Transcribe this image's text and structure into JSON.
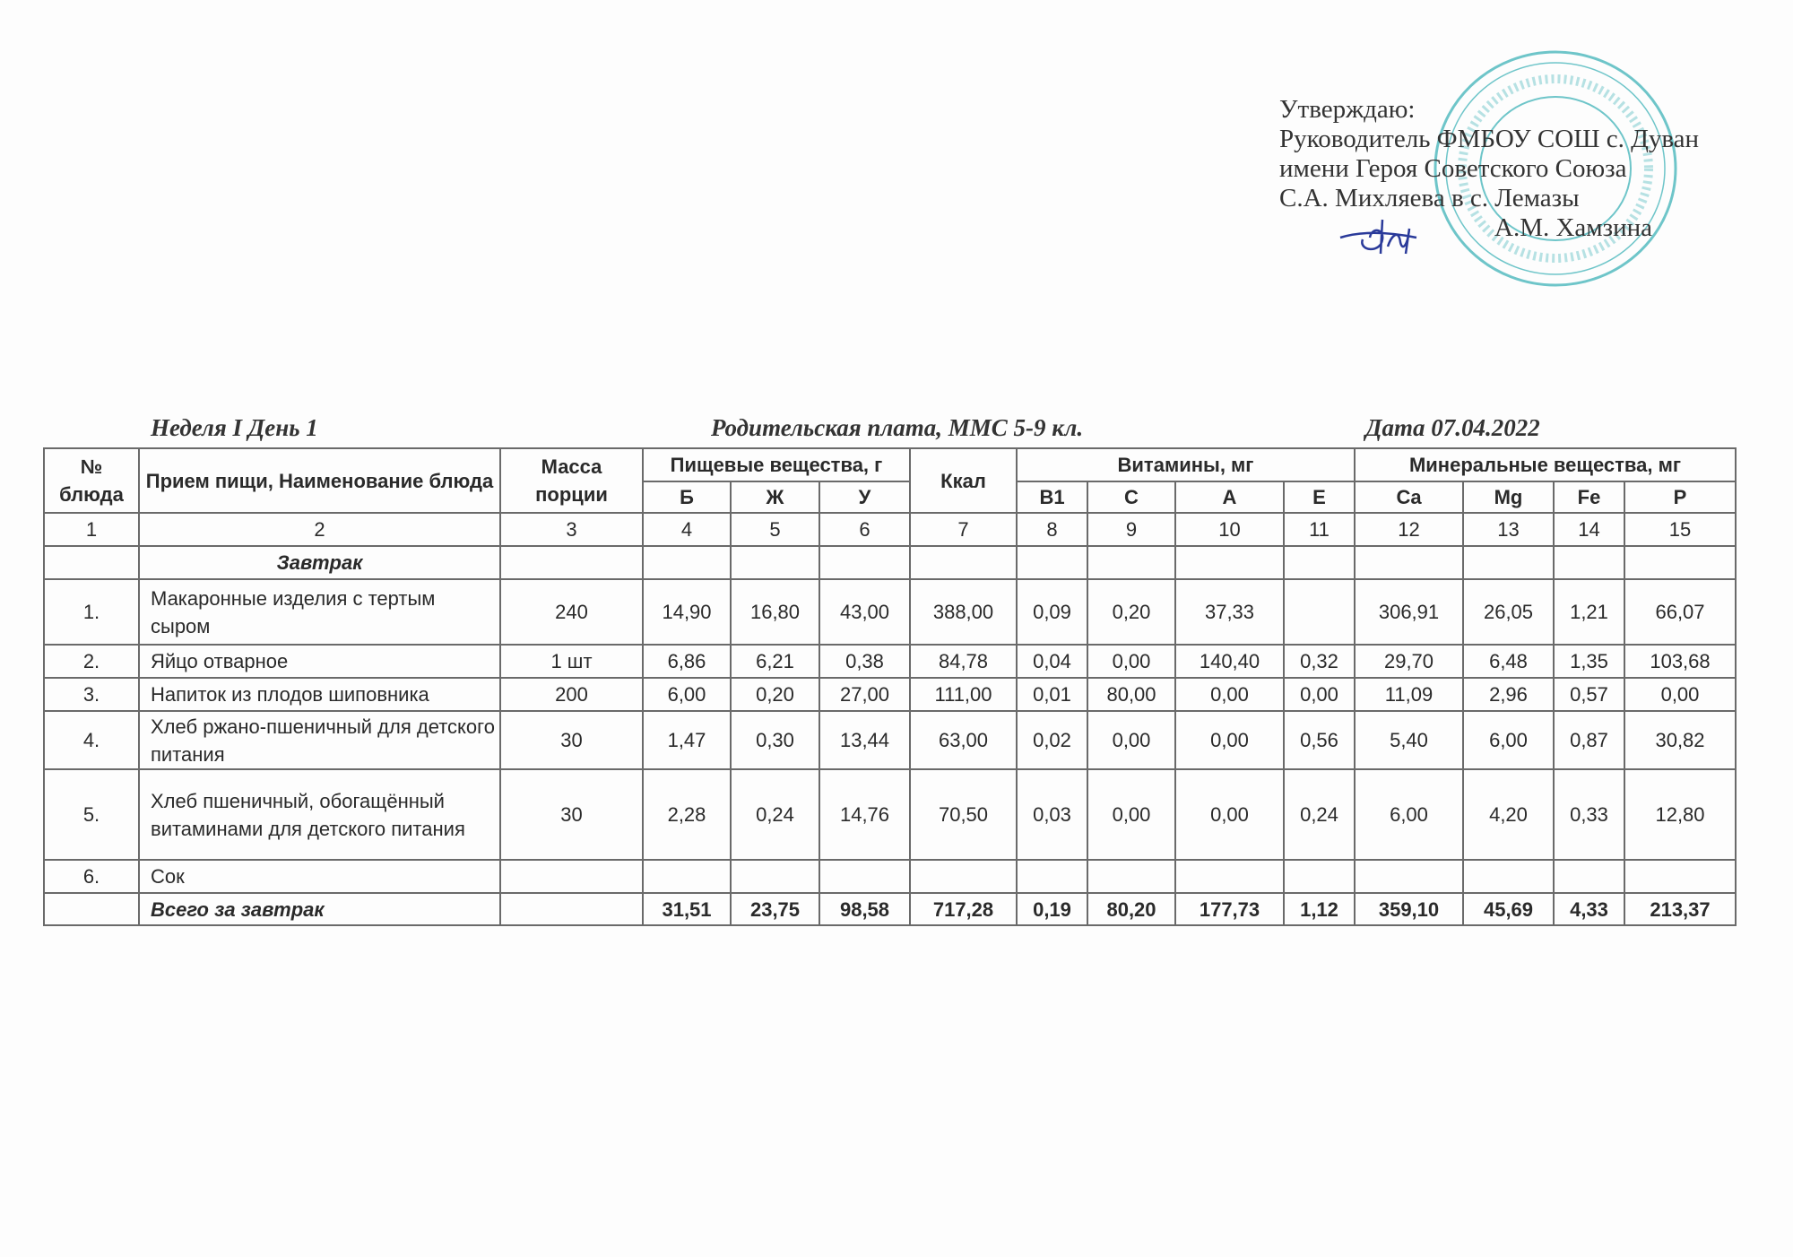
{
  "approval": {
    "lines": [
      "Утверждаю:",
      "Руководитель ФМБОУ СОШ с. Дуван",
      "имени Героя Советского Союза",
      "С.А. Михляева в с. Лемазы"
    ],
    "signer": "А.М. Хамзина",
    "stamp_text": "ФМБОУ СОШ с. Дуван в с. Лемазы",
    "stamp_color": "#3fb3b8",
    "signature_color": "#2a3a9a"
  },
  "title": {
    "week_day": "Неделя I  День 1",
    "payment": "Родительская плата, ММС  5-9 кл.",
    "date": "Дата  07.04.2022"
  },
  "table": {
    "headers": {
      "num": "№ блюда",
      "name": "Прием пищи, Наименование блюда",
      "mass": "Масса порции",
      "nutrients": "Пищевые вещества, г",
      "kcal": "Ккал",
      "vitamins": "Витамины, мг",
      "minerals": "Минеральные вещества, мг",
      "sub": [
        "Б",
        "Ж",
        "У",
        "B1",
        "C",
        "A",
        "E",
        "Ca",
        "Mg",
        "Fe",
        "P"
      ]
    },
    "col_numbers": [
      "1",
      "2",
      "3",
      "4",
      "5",
      "6",
      "7",
      "8",
      "9",
      "10",
      "11",
      "12",
      "13",
      "14",
      "15"
    ],
    "meal": "Завтрак",
    "rows": [
      [
        "1.",
        "Макаронные изделия с тертым сыром",
        "240",
        "14,90",
        "16,80",
        "43,00",
        "388,00",
        "0,09",
        "0,20",
        "37,33",
        "",
        "306,91",
        "26,05",
        "1,21",
        "66,07"
      ],
      [
        "2.",
        "Яйцо отварное",
        "1 шт",
        "6,86",
        "6,21",
        "0,38",
        "84,78",
        "0,04",
        "0,00",
        "140,40",
        "0,32",
        "29,70",
        "6,48",
        "1,35",
        "103,68"
      ],
      [
        "3.",
        "Напиток из плодов шиповника",
        "200",
        "6,00",
        "0,20",
        "27,00",
        "111,00",
        "0,01",
        "80,00",
        "0,00",
        "0,00",
        "11,09",
        "2,96",
        "0,57",
        "0,00"
      ],
      [
        "4.",
        "Хлеб ржано-пшеничный для детского питания",
        "30",
        "1,47",
        "0,30",
        "13,44",
        "63,00",
        "0,02",
        "0,00",
        "0,00",
        "0,56",
        "5,40",
        "6,00",
        "0,87",
        "30,82"
      ],
      [
        "5.",
        "Хлеб пшеничный, обогащённый витаминами для детского питания",
        "30",
        "2,28",
        "0,24",
        "14,76",
        "70,50",
        "0,03",
        "0,00",
        "0,00",
        "0,24",
        "6,00",
        "4,20",
        "0,33",
        "12,80"
      ],
      [
        "6.",
        "Сок",
        "",
        "",
        "",
        "",
        "",
        "",
        "",
        "",
        "",
        "",
        "",
        "",
        ""
      ]
    ],
    "total": [
      "",
      "Всего за завтрак",
      "",
      "31,51",
      "23,75",
      "98,58",
      "717,28",
      "0,19",
      "80,20",
      "177,73",
      "1,12",
      "359,10",
      "45,69",
      "4,33",
      "213,37"
    ]
  }
}
